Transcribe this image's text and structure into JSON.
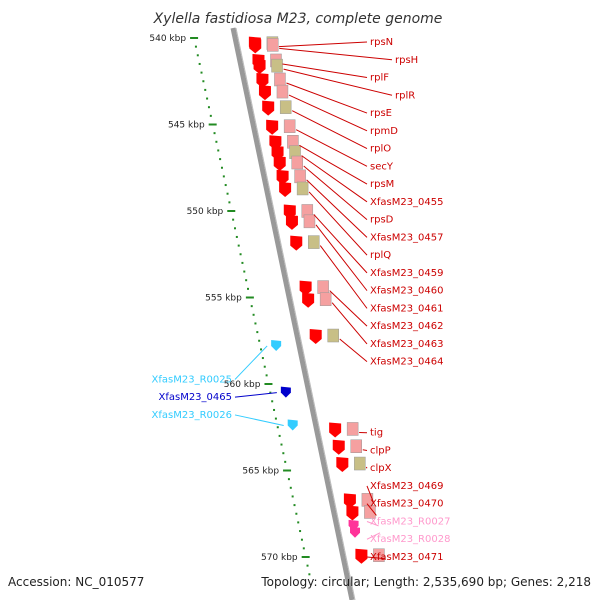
{
  "title": "Xylella fastidiosa M23, complete genome",
  "footer": {
    "accession": "Accession: NC_010577",
    "topology": "Topology: circular; Length: 2,535,690 bp; Genes: 2,218"
  },
  "colors": {
    "cds": "#ff0000",
    "cds_label": "#cc0000",
    "trna": "#33ccff",
    "ncrna": "#0000cc",
    "ncrna_pink": "#ff99cc",
    "ruler_tick": "#228b22",
    "spine": "#999999"
  },
  "scale": {
    "unit": "kbp",
    "marks": [
      {
        "kbp": 540,
        "label": "540 kbp"
      },
      {
        "kbp": 545,
        "label": "545 kbp"
      },
      {
        "kbp": 550,
        "label": "550 kbp"
      },
      {
        "kbp": 555,
        "label": "555 kbp"
      },
      {
        "kbp": 560,
        "label": "560 kbp"
      },
      {
        "kbp": 565,
        "label": "565 kbp"
      },
      {
        "kbp": 570,
        "label": "570 kbp"
      }
    ]
  },
  "features": [
    {
      "label": "rpsN",
      "type": "cds",
      "at": 540.5
    },
    {
      "label": "rpsH",
      "type": "cds",
      "at": 540.6
    },
    {
      "label": "rplF",
      "type": "cds",
      "at": 541.5
    },
    {
      "label": "rplR",
      "type": "cds",
      "at": 541.8
    },
    {
      "label": "rpsE",
      "type": "cds",
      "at": 542.6
    },
    {
      "label": "rpmD",
      "type": "cds",
      "at": 543.3
    },
    {
      "label": "rplO",
      "type": "cds",
      "at": 544.2
    },
    {
      "label": "secY",
      "type": "cds",
      "at": 545.3
    },
    {
      "label": "rpsM",
      "type": "cds",
      "at": 546.2
    },
    {
      "label": "XfasM23_0455",
      "type": "cds",
      "at": 546.8
    },
    {
      "label": "rpsD",
      "type": "cds",
      "at": 547.4
    },
    {
      "label": "XfasM23_0457",
      "type": "cds",
      "at": 548.2
    },
    {
      "label": "rplQ",
      "type": "cds",
      "at": 548.9
    },
    {
      "label": "XfasM23_0459",
      "type": "cds",
      "at": 550.2
    },
    {
      "label": "XfasM23_0460",
      "type": "cds",
      "at": 550.8
    },
    {
      "label": "XfasM23_0461",
      "type": "cds",
      "at": 552.0
    },
    {
      "label": "XfasM23_0462",
      "type": "cds",
      "at": 554.6
    },
    {
      "label": "XfasM23_0463",
      "type": "cds",
      "at": 555.3
    },
    {
      "label": "XfasM23_0464",
      "type": "cds",
      "at": 557.4
    },
    {
      "label": "XfasM23_R0025",
      "type": "trna",
      "at": 557.8
    },
    {
      "label": "XfasM23_0465",
      "type": "ncrna",
      "at": 560.5
    },
    {
      "label": "XfasM23_R0026",
      "type": "trna",
      "at": 562.4
    },
    {
      "label": "tig",
      "type": "cds",
      "at": 562.8
    },
    {
      "label": "clpP",
      "type": "cds",
      "at": 563.8
    },
    {
      "label": "clpX",
      "type": "cds",
      "at": 564.8
    },
    {
      "label": "XfasM23_0469",
      "type": "cds",
      "at": 566.9
    },
    {
      "label": "XfasM23_0470",
      "type": "cds",
      "at": 567.6
    },
    {
      "label": "XfasM23_R0027",
      "type": "ncrna_pink",
      "at": 568.2
    },
    {
      "label": "XfasM23_R0028",
      "type": "ncrna_pink",
      "at": 568.6
    },
    {
      "label": "XfasM23_0471",
      "type": "cds",
      "at": 570.1
    }
  ]
}
